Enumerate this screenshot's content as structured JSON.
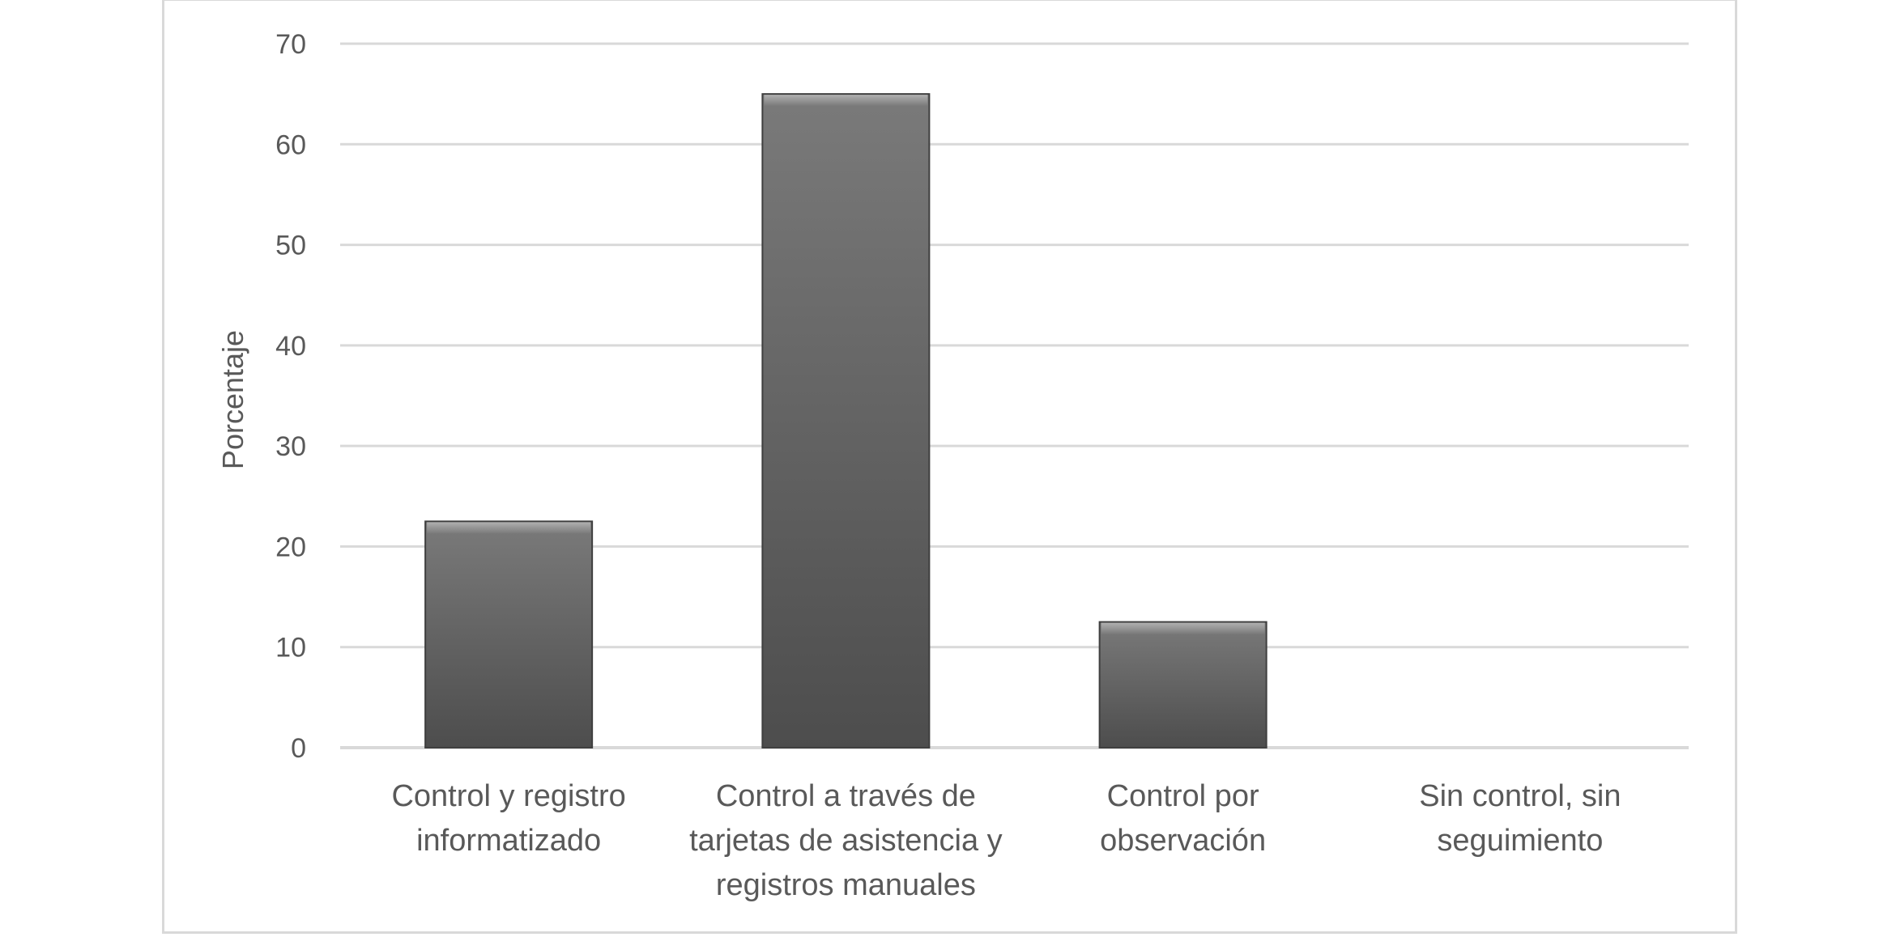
{
  "chart_data": {
    "type": "bar",
    "title": "",
    "xlabel": "",
    "ylabel": "Porcentaje",
    "ylim": [
      0,
      70
    ],
    "yticks": [
      0,
      10,
      20,
      30,
      40,
      50,
      60,
      70
    ],
    "grid": true,
    "legend": "none",
    "categories": [
      [
        "Control y registro",
        "informatizado"
      ],
      [
        "Control a través de",
        "tarjetas de asistencia y",
        "registros manuales"
      ],
      [
        "Control por",
        "observación"
      ],
      [
        "Sin control, sin",
        "seguimiento"
      ]
    ],
    "values": [
      22.5,
      65,
      12.5,
      0
    ],
    "colors": {
      "bar_top": "#7a7a7a",
      "bar_bottom": "#4d4d4d",
      "grid": "#d9d9d9",
      "text": "#595959"
    }
  }
}
